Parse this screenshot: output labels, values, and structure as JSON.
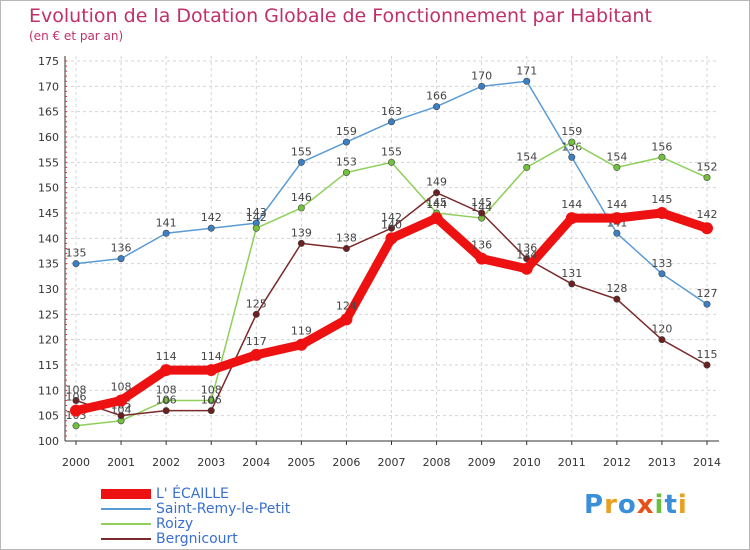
{
  "title": "Evolution de la Dotation Globale de Fonctionnement par Habitant",
  "subtitle": "(en € et par an)",
  "logo": "Proxiti",
  "chart_data": {
    "type": "line",
    "x": [
      2000,
      2001,
      2002,
      2003,
      2004,
      2005,
      2006,
      2007,
      2008,
      2009,
      2010,
      2011,
      2012,
      2013,
      2014
    ],
    "ylim": [
      100,
      175
    ],
    "yticks": [
      100,
      105,
      110,
      115,
      120,
      125,
      130,
      135,
      140,
      145,
      150,
      155,
      160,
      165,
      170,
      175
    ],
    "grid": true,
    "series": [
      {
        "name": "Saint-Remy-le-Petit",
        "color": "#5b9bd5",
        "point_color": "#3b7fc4",
        "values": [
          135,
          136,
          141,
          142,
          143,
          155,
          159,
          163,
          166,
          170,
          171,
          156,
          141,
          133,
          127
        ]
      },
      {
        "name": "Roizy",
        "color": "#8ed05a",
        "point_color": "#72c23c",
        "values": [
          103,
          104,
          108,
          108,
          142,
          146,
          153,
          155,
          145,
          144,
          154,
          159,
          154,
          156,
          152
        ]
      },
      {
        "name": "Bergnicourt",
        "color": "#7a2a2a",
        "point_color": "#6b1f1f",
        "values": [
          108,
          105,
          106,
          106,
          125,
          139,
          138,
          142,
          149,
          145,
          136,
          131,
          128,
          120,
          115
        ]
      },
      {
        "name": "L' ÉCAILLE",
        "color": "#ee1111",
        "point_color": "#ee1111",
        "values": [
          106,
          108,
          114,
          114,
          117,
          119,
          124,
          140,
          144,
          136,
          134,
          144,
          144,
          145,
          142
        ]
      }
    ],
    "legend": [
      "L' ÉCAILLE",
      "Saint-Remy-le-Petit",
      "Roizy",
      "Bergnicourt"
    ]
  }
}
